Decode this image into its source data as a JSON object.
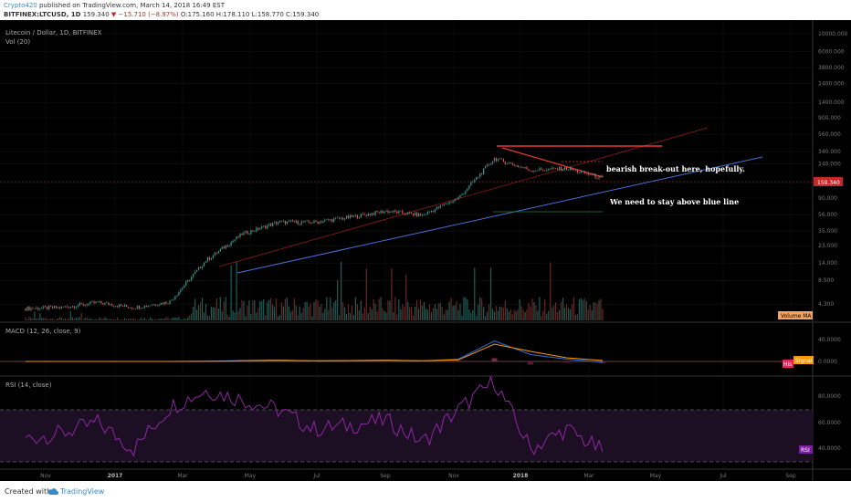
{
  "header": {
    "author": "Crypto420",
    "published_text": "published on TradingView.com, March 14, 2018 16:49 EST",
    "symbol": "BITFINEX:LTCUSD, 1D",
    "price": "159.340",
    "change": "−15.710 (−8.97%)",
    "ohlc": "O:175.160 H:178.110 L:158.770 C:159.340"
  },
  "footer": {
    "created_with": "Created with",
    "brand": "TradingView"
  },
  "colors": {
    "background": "#000000",
    "candle_up": "#26a69a",
    "candle_down": "#ef5350",
    "trendline_blue": "#4a6fd6",
    "resistance_red": "#e53935",
    "rsi_purple": "#9c27b0",
    "macd_blue": "#2f6fe0",
    "signal_orange": "#ff9800",
    "volume_ma": "#f4a460"
  },
  "chart_data": [
    {
      "type": "candlestick",
      "panel": "price",
      "title": "Litecoin / Dollar, 1D, BITFINEX",
      "sublabel": "Vol (20)",
      "yscale": "log",
      "yticks": [
        "10000.000",
        "6000.000",
        "3800.000",
        "2400.000",
        "1400.000",
        "900.000",
        "560.000",
        "340.000",
        "240.000",
        "140.000",
        "90.000",
        "56.000",
        "35.000",
        "23.000",
        "14.000",
        "8.500",
        "4.300"
      ],
      "xticks": [
        "Nov",
        "2017",
        "Mar",
        "May",
        "Jul",
        "Sep",
        "Nov",
        "2018",
        "Mar",
        "May",
        "Jul",
        "Sep"
      ],
      "last_price_label": "159.340",
      "volume_ma_label": "Volume MA",
      "x": [
        "2016-11",
        "2016-12",
        "2017-01",
        "2017-02",
        "2017-03",
        "2017-04",
        "2017-05",
        "2017-06",
        "2017-07",
        "2017-08",
        "2017-09",
        "2017-10",
        "2017-11",
        "2017-12",
        "2018-01",
        "2018-02",
        "2018-03"
      ],
      "close": [
        3.8,
        3.9,
        4.5,
        3.9,
        4.6,
        15,
        32,
        45,
        45,
        52,
        62,
        55,
        90,
        280,
        200,
        210,
        159.34
      ],
      "annotations": [
        "bearish break-out here, hopefully.",
        "We need to stay above blue line"
      ],
      "trendlines": [
        {
          "name": "support",
          "color": "#4a6fd6",
          "from": [
            "2017-04",
            17
          ],
          "to": [
            "2018-08",
            330
          ]
        },
        {
          "name": "resistance",
          "color": "#e53935",
          "level": 420
        }
      ]
    },
    {
      "type": "line",
      "panel": "macd",
      "title": "MACD (12, 26, close, 9)",
      "yticks": [
        "40.0000",
        "0.0000"
      ],
      "badges": [
        "His",
        "Signal"
      ],
      "series": [
        {
          "name": "MACD",
          "values": [
            0,
            0,
            0,
            0,
            0,
            0.5,
            2,
            3,
            1,
            2,
            3,
            1,
            5,
            45,
            15,
            5,
            -2
          ]
        },
        {
          "name": "Signal",
          "values": [
            0,
            0,
            0,
            0,
            0,
            0.3,
            1.5,
            2.5,
            1.5,
            1.8,
            2.5,
            1.5,
            3.5,
            38,
            22,
            8,
            2
          ]
        }
      ]
    },
    {
      "type": "line",
      "panel": "rsi",
      "title": "RSI (14, close)",
      "yticks": [
        "80.0000",
        "60.0000",
        "40.0000"
      ],
      "badge": "RSI",
      "overbought": 70,
      "oversold": 30,
      "values": [
        48,
        52,
        60,
        40,
        72,
        85,
        78,
        70,
        55,
        58,
        62,
        45,
        70,
        92,
        40,
        55,
        38
      ]
    }
  ]
}
